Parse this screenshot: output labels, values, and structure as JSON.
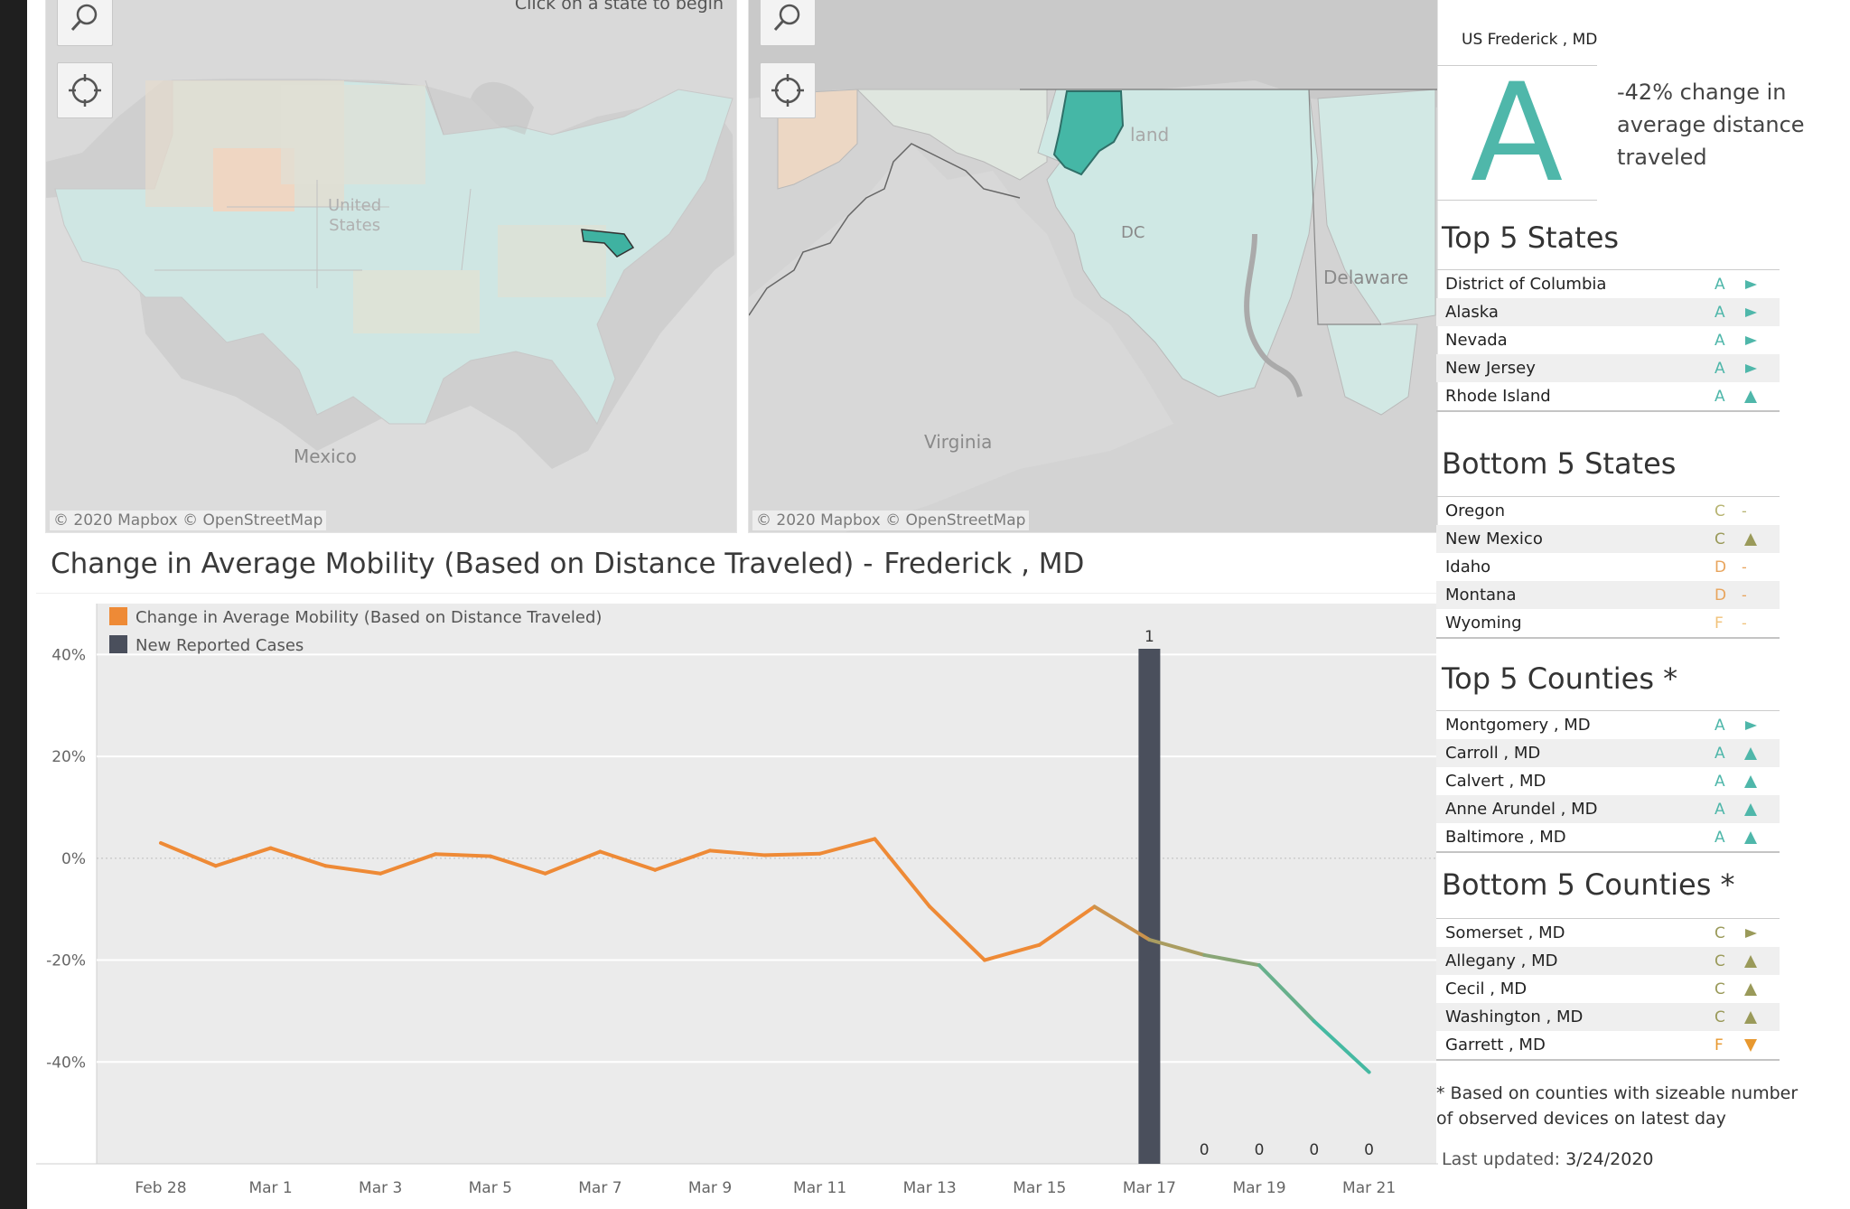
{
  "maps": {
    "us": {
      "hint": "Click on a state to begin",
      "label_country": "United\nStates",
      "label_mexico": "Mexico",
      "attribution": "© 2020 Mapbox  © OpenStreetMap"
    },
    "state": {
      "label_virginia": "Virginia",
      "label_delaware": "Delaware",
      "label_dc": "DC",
      "label_maryland_fragment": "land",
      "attribution": "© 2020 Mapbox  © OpenStreetMap"
    }
  },
  "chart_title": {
    "prefix": "Change in Average Mobility (Based on Distance Traveled) -",
    "location": "Frederick , MD"
  },
  "chart_data": {
    "type": "line",
    "title": "Change in Average Mobility (Based on Distance Traveled) - Frederick , MD",
    "xlabel": "",
    "ylabel": "",
    "ylim": [
      -60,
      50
    ],
    "yticks": [
      40,
      20,
      0,
      -20,
      -40
    ],
    "ytick_labels": [
      "40%",
      "20%",
      "0%",
      "-20%",
      "-40%"
    ],
    "legend": [
      "Change in Average Mobility (Based on Distance Traveled)",
      "New Reported Cases"
    ],
    "legend_position": "top-left",
    "dates": [
      "Feb 28",
      "Feb 29",
      "Mar 1",
      "Mar 2",
      "Mar 3",
      "Mar 4",
      "Mar 5",
      "Mar 6",
      "Mar 7",
      "Mar 8",
      "Mar 9",
      "Mar 10",
      "Mar 11",
      "Mar 12",
      "Mar 13",
      "Mar 14",
      "Mar 15",
      "Mar 16",
      "Mar 17",
      "Mar 18",
      "Mar 19",
      "Mar 20",
      "Mar 21"
    ],
    "xtick_labels": [
      "Feb 28",
      "Mar 1",
      "Mar 3",
      "Mar 5",
      "Mar 7",
      "Mar 9",
      "Mar 11",
      "Mar 13",
      "Mar 15",
      "Mar 17",
      "Mar 19",
      "Mar 21"
    ],
    "series": [
      {
        "name": "Change in Average Mobility (Based on Distance Traveled)",
        "values": [
          3,
          -1.5,
          2,
          -1.5,
          -3,
          0.8,
          0.4,
          -3,
          1.3,
          -2.3,
          1.5,
          0.6,
          0.9,
          3.8,
          -9.5,
          -20,
          -17,
          -9.5,
          -16,
          -19,
          -21,
          -32,
          -42
        ]
      },
      {
        "name": "New Reported Cases",
        "bars": [
          {
            "date": "Mar 17",
            "value": 1,
            "label": "1"
          },
          {
            "date": "Mar 18",
            "value": 0,
            "label": "0"
          },
          {
            "date": "Mar 19",
            "value": 0,
            "label": "0"
          },
          {
            "date": "Mar 20",
            "value": 0,
            "label": "0"
          },
          {
            "date": "Mar 21",
            "value": 0,
            "label": "0"
          }
        ]
      }
    ],
    "colors": {
      "mobility": "#ee8a36",
      "mobility_end": "#3bbca8",
      "cases": "#4a4f5c"
    }
  },
  "panel": {
    "header": "US Frederick , MD",
    "grade": "A",
    "grade_desc": "-42% change in average distance traveled",
    "top_states": {
      "title": "Top 5 States",
      "rows": [
        {
          "name": "District of Columbia",
          "grade": "A",
          "trend": "right",
          "color": "#4fb7aa"
        },
        {
          "name": "Alaska",
          "grade": "A",
          "trend": "right",
          "color": "#4fb7aa"
        },
        {
          "name": "Nevada",
          "grade": "A",
          "trend": "right",
          "color": "#4fb7aa"
        },
        {
          "name": "New Jersey",
          "grade": "A",
          "trend": "right",
          "color": "#4fb7aa"
        },
        {
          "name": "Rhode Island",
          "grade": "A",
          "trend": "up",
          "color": "#4fb7aa"
        }
      ]
    },
    "bottom_states": {
      "title": "Bottom 5 States",
      "rows": [
        {
          "name": "Oregon",
          "grade": "C",
          "trend": "-",
          "color": "#b7b472"
        },
        {
          "name": "New Mexico",
          "grade": "C",
          "trend": "up",
          "color": "#9a9a5a"
        },
        {
          "name": "Idaho",
          "grade": "D",
          "trend": "-",
          "color": "#e8a45c"
        },
        {
          "name": "Montana",
          "grade": "D",
          "trend": "-",
          "color": "#e8a45c"
        },
        {
          "name": "Wyoming",
          "grade": "F",
          "trend": "-",
          "color": "#f1c27a"
        }
      ]
    },
    "top_counties": {
      "title": "Top 5 Counties *",
      "rows": [
        {
          "name": "Montgomery , MD",
          "grade": "A",
          "trend": "right",
          "color": "#4fb7aa"
        },
        {
          "name": "Carroll , MD",
          "grade": "A",
          "trend": "up",
          "color": "#4fb7aa"
        },
        {
          "name": "Calvert , MD",
          "grade": "A",
          "trend": "up",
          "color": "#4fb7aa"
        },
        {
          "name": "Anne Arundel , MD",
          "grade": "A",
          "trend": "up",
          "color": "#4fb7aa"
        },
        {
          "name": "Baltimore , MD",
          "grade": "A",
          "trend": "up",
          "color": "#4fb7aa"
        }
      ]
    },
    "bottom_counties": {
      "title": "Bottom 5 Counties *",
      "rows": [
        {
          "name": "Somerset , MD",
          "grade": "C",
          "trend": "right",
          "color": "#9a9a5a"
        },
        {
          "name": "Allegany , MD",
          "grade": "C",
          "trend": "up",
          "color": "#9a9a5a"
        },
        {
          "name": "Cecil , MD",
          "grade": "C",
          "trend": "up",
          "color": "#9a9a5a"
        },
        {
          "name": "Washington , MD",
          "grade": "C",
          "trend": "up",
          "color": "#9a9a5a"
        },
        {
          "name": "Garrett , MD",
          "grade": "F",
          "trend": "down",
          "color": "#e8982f"
        }
      ]
    },
    "footnote": "* Based on counties with sizeable number of observed devices on latest day",
    "updated_label": "Last updated:",
    "updated_value": "3/24/2020"
  }
}
